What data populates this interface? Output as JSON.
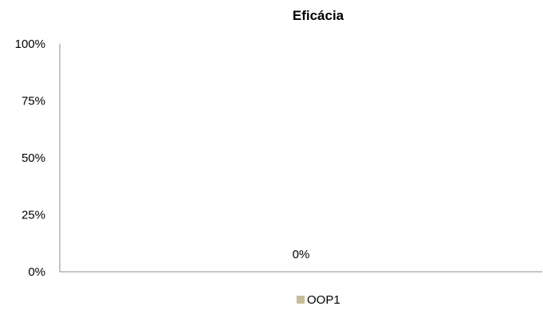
{
  "chart_data": {
    "type": "bar",
    "title": "Eficácia",
    "xlabel": "",
    "ylabel": "",
    "categories": [
      ""
    ],
    "series": [
      {
        "name": "OOP1",
        "values": [
          0
        ],
        "data_labels": [
          "0%"
        ],
        "color": "#c9bd98"
      }
    ],
    "ylim": [
      0,
      100
    ],
    "yticks": [
      0,
      25,
      50,
      75,
      100
    ],
    "ytick_labels": [
      "0%",
      "25%",
      "50%",
      "75%",
      "100%"
    ],
    "grid": false,
    "legend_position": "bottom"
  }
}
